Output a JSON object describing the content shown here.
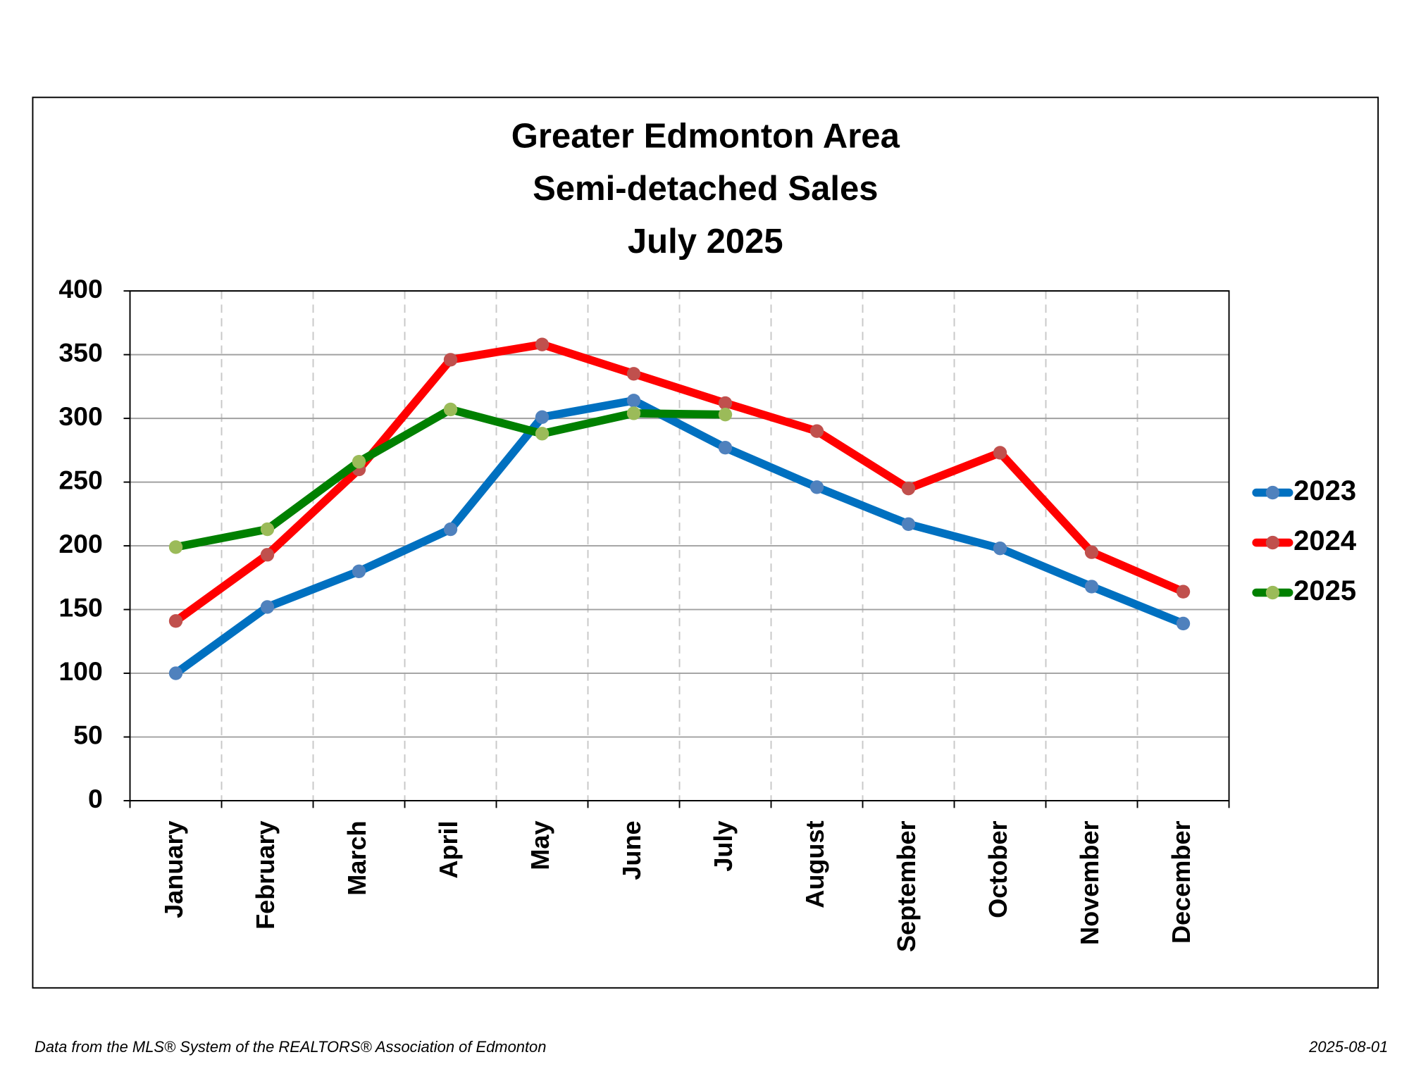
{
  "chart_data": {
    "type": "line",
    "title": [
      "Greater Edmonton Area",
      "Semi-detached Sales",
      "July 2025"
    ],
    "categories": [
      "January",
      "February",
      "March",
      "April",
      "May",
      "June",
      "July",
      "August",
      "September",
      "October",
      "November",
      "December"
    ],
    "series": [
      {
        "name": "2023",
        "color": "#0070c0",
        "marker_color": "#4f81bd",
        "values": [
          100,
          152,
          180,
          213,
          301,
          314,
          277,
          246,
          217,
          198,
          168,
          139
        ]
      },
      {
        "name": "2024",
        "color": "#ff0000",
        "marker_color": "#c0504d",
        "values": [
          141,
          193,
          260,
          346,
          358,
          335,
          312,
          290,
          245,
          273,
          195,
          164
        ]
      },
      {
        "name": "2025",
        "color": "#008000",
        "marker_color": "#9bbb59",
        "values": [
          199,
          213,
          266,
          307,
          288,
          304,
          303,
          null,
          null,
          null,
          null,
          null
        ]
      }
    ],
    "ylim": [
      0,
      400
    ],
    "yticks": [
      0,
      50,
      100,
      150,
      200,
      250,
      300,
      350,
      400
    ],
    "grid": true,
    "legend": "right",
    "source": "Data from the MLS® System of the REALTORS® Association of Edmonton",
    "date": "2025-08-01"
  }
}
